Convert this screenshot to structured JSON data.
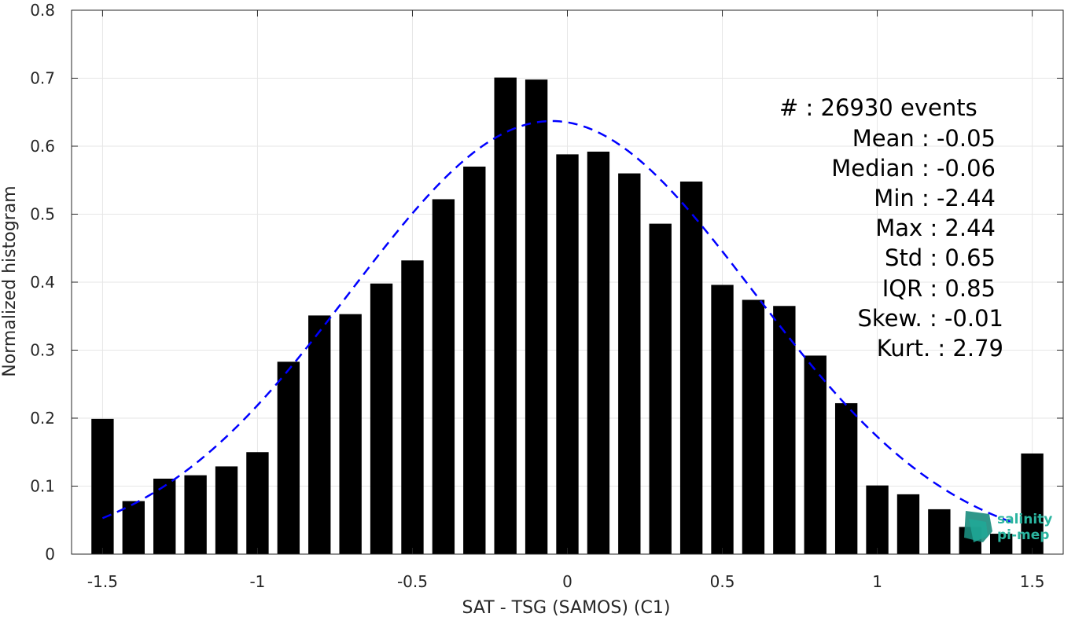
{
  "chart_data": {
    "type": "bar",
    "xlabel": "SAT - TSG (SAMOS) (C1)",
    "ylabel": "Normalized histogram",
    "xlim": [
      -1.6,
      1.6
    ],
    "ylim": [
      0,
      0.8
    ],
    "xticks": [
      "-1.5",
      "-1",
      "-0.5",
      "0",
      "0.5",
      "1",
      "1.5"
    ],
    "xtick_values": [
      -1.5,
      -1,
      -0.5,
      0,
      0.5,
      1,
      1.5
    ],
    "yticks": [
      "0",
      "0.1",
      "0.2",
      "0.3",
      "0.4",
      "0.5",
      "0.6",
      "0.7",
      "0.8"
    ],
    "ytick_values": [
      0,
      0.1,
      0.2,
      0.3,
      0.4,
      0.5,
      0.6,
      0.7,
      0.8
    ],
    "grid": true,
    "bar_color": "#000000",
    "fit_color": "#0000ff",
    "bin_centers": [
      -1.5,
      -1.4,
      -1.3,
      -1.2,
      -1.1,
      -1.0,
      -0.9,
      -0.8,
      -0.7,
      -0.6,
      -0.5,
      -0.4,
      -0.3,
      -0.2,
      -0.1,
      0.0,
      0.1,
      0.2,
      0.3,
      0.4,
      0.5,
      0.6,
      0.7,
      0.8,
      0.9,
      1.0,
      1.1,
      1.2,
      1.3,
      1.4,
      1.5
    ],
    "values": [
      0.199,
      0.078,
      0.111,
      0.116,
      0.129,
      0.15,
      0.283,
      0.351,
      0.353,
      0.398,
      0.432,
      0.522,
      0.57,
      0.701,
      0.698,
      0.588,
      0.592,
      0.56,
      0.486,
      0.548,
      0.396,
      0.374,
      0.365,
      0.292,
      0.222,
      0.101,
      0.088,
      0.066,
      0.04,
      0.03,
      0.148
    ],
    "fit": {
      "style": "dashed",
      "curve": "gaussian",
      "mean": -0.05,
      "std": 0.65
    },
    "stats": [
      {
        "label": "#  : 26930 events"
      },
      {
        "label": "Mean : -0.05"
      },
      {
        "label": "Median : -0.06"
      },
      {
        "label": "Min : -2.44"
      },
      {
        "label": "Max : 2.44"
      },
      {
        "label": "Std : 0.65"
      },
      {
        "label": "IQR : 0.85"
      },
      {
        "label": "Skew. : -0.01"
      },
      {
        "label": "Kurt. : 2.79"
      }
    ]
  },
  "logo": {
    "line1": "salinity",
    "line2": "pi-mep",
    "color": "#2bb5a0"
  }
}
